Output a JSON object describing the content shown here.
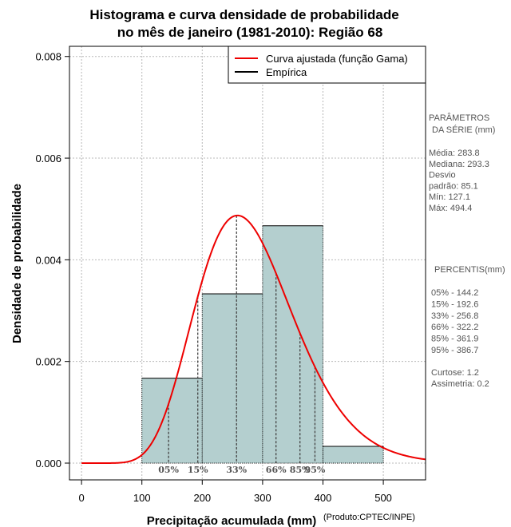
{
  "chart_data": {
    "type": "histogram",
    "title": [
      "Histograma e curva densidade de probabilidade",
      "no mês de janeiro (1981-2010): Região 68"
    ],
    "xlabel": "Precipitação acumulada (mm)",
    "ylabel": "Densidade de probabilidade",
    "credit": "(Produto:CPTEC/INPE)",
    "xlim": [
      -20,
      570
    ],
    "ylim": [
      -0.00033,
      0.0082
    ],
    "x_ticks": [
      0,
      100,
      200,
      300,
      400,
      500
    ],
    "y_ticks": [
      0.0,
      0.002,
      0.004,
      0.006,
      0.008
    ],
    "y_tick_labels": [
      "0.000",
      "0.002",
      "0.004",
      "0.006",
      "0.008"
    ],
    "grid": true,
    "bar_color": "#b4cfcf",
    "curve_color": "#ee0000",
    "bins": [
      {
        "start": 100,
        "end": 200,
        "density": 0.00167
      },
      {
        "start": 200,
        "end": 300,
        "density": 0.00333
      },
      {
        "start": 300,
        "end": 400,
        "density": 0.00467
      },
      {
        "start": 400,
        "end": 500,
        "density": 0.00033
      }
    ],
    "gamma_fit": {
      "shape": 11.12,
      "scale": 25.53
    },
    "percentiles": [
      {
        "label": "05%",
        "value": 144.2
      },
      {
        "label": "15%",
        "value": 192.6
      },
      {
        "label": "33%",
        "value": 256.8
      },
      {
        "label": "66%",
        "value": 322.2
      },
      {
        "label": "85%",
        "value": 361.9
      },
      {
        "label": "95%",
        "value": 386.7
      }
    ],
    "legend": {
      "position": "top-right",
      "entries": [
        {
          "label": "Curva ajustada (função Gama)",
          "color": "#ee0000"
        },
        {
          "label": "Empírica",
          "color": "#000000"
        }
      ]
    }
  },
  "side_panel": {
    "params_title_1": "PARÂMETROS",
    "params_title_2": "DA SÉRIE (mm)",
    "params": [
      "Média:  283.8",
      "Mediana:  293.3",
      "Desvio",
      "padrão:  85.1",
      "Mín:  127.1",
      "Máx:  494.4"
    ],
    "percentis_title": "PERCENTIS(mm)",
    "percentis": [
      "05% -  144.2",
      "15% -  192.6",
      "33% -  256.8",
      "66% -  322.2",
      "85% -  361.9",
      "95% -  386.7"
    ],
    "stats": [
      "Curtose:  1.2",
      "Assimetria:  0.2"
    ]
  }
}
